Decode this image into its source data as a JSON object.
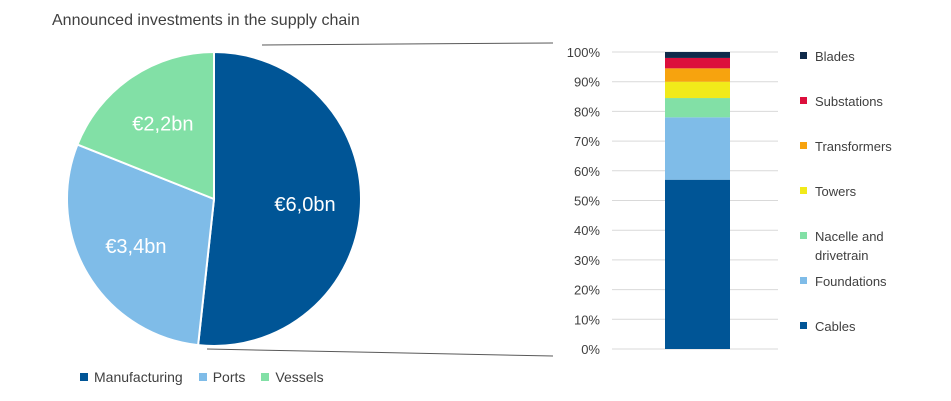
{
  "title": "Announced investments in the supply chain",
  "chart_data": [
    {
      "type": "pie",
      "categories": [
        "Manufacturing",
        "Ports",
        "Vessels"
      ],
      "values": [
        6.0,
        3.4,
        2.2
      ],
      "data_labels": [
        "€6,0bn",
        "€3,4bn",
        "€2,2bn"
      ],
      "colors": [
        "#005596",
        "#7fbce8",
        "#82e0a6"
      ],
      "legend": "bottom"
    },
    {
      "type": "bar",
      "stacked": true,
      "categories": [
        ""
      ],
      "series": [
        {
          "name": "Cables",
          "values": [
            0.57
          ],
          "color": "#005596"
        },
        {
          "name": "Foundations",
          "values": [
            0.21
          ],
          "color": "#7fbce8"
        },
        {
          "name": "Nacelle and drivetrain",
          "values": [
            0.065
          ],
          "color": "#82e0a6"
        },
        {
          "name": "Towers",
          "values": [
            0.055
          ],
          "color": "#f1ea1a"
        },
        {
          "name": "Transformers",
          "values": [
            0.045
          ],
          "color": "#f7a30e"
        },
        {
          "name": "Substations",
          "values": [
            0.035
          ],
          "color": "#dc0f3c"
        },
        {
          "name": "Blades",
          "values": [
            0.02
          ],
          "color": "#0f2a4a"
        }
      ],
      "ylim": [
        0,
        1
      ],
      "yticks": [
        "0%",
        "10%",
        "20%",
        "30%",
        "40%",
        "50%",
        "60%",
        "70%",
        "80%",
        "90%",
        "100%"
      ],
      "grid": true,
      "legend": "right"
    }
  ]
}
